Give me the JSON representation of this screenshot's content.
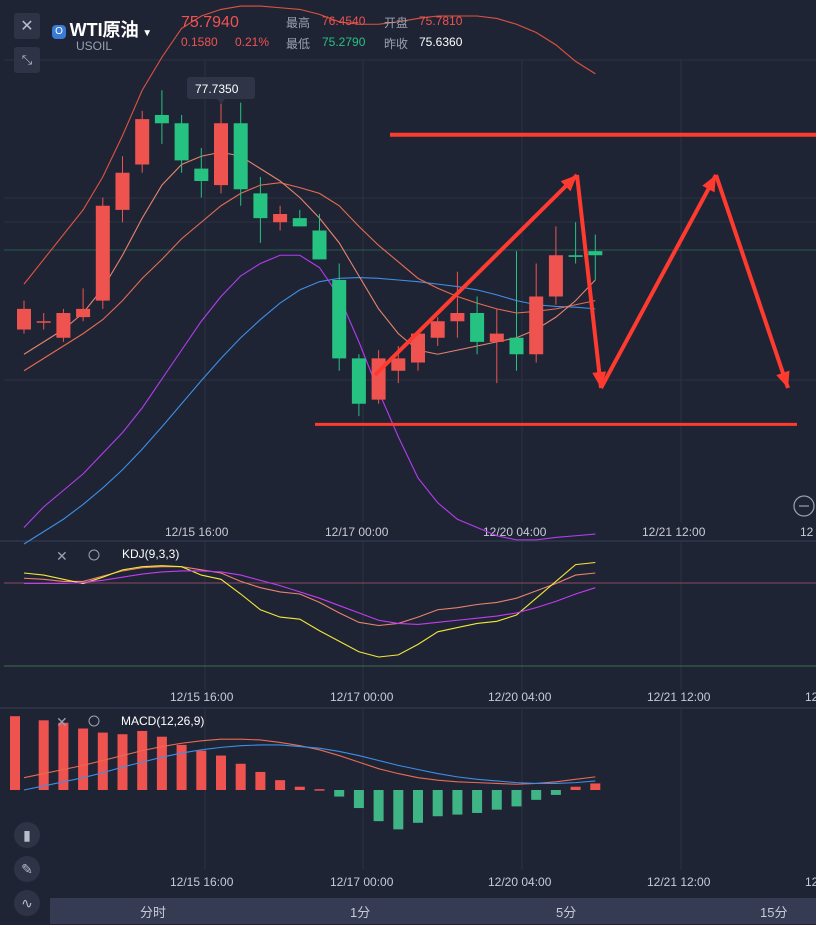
{
  "header": {
    "symbol": "WTI原油",
    "code": "USOIL",
    "price": "75.7940",
    "change": "0.1580",
    "change_pct": "0.21%",
    "high_label": "最高",
    "high": "76.4540",
    "open_label": "开盘",
    "open": "75.7810",
    "low_label": "最低",
    "low": "75.2790",
    "prev_label": "昨收",
    "prev_close": "75.6360",
    "colors": {
      "up": "#ef5350",
      "down": "#26c281"
    }
  },
  "tabs": [
    {
      "label": "分时"
    },
    {
      "label": "1分"
    },
    {
      "label": "5分"
    },
    {
      "label": "15分"
    }
  ],
  "chart_data": [
    {
      "type": "candlestick",
      "name": "price",
      "time_labels": [
        "12/15 16:00",
        "12/17 00:00",
        "12/20 04:00",
        "12/21 12:00",
        "12"
      ],
      "annotation": "77.7350",
      "candles": [
        {
          "o": 74.7,
          "h": 75.05,
          "l": 74.65,
          "c": 74.95
        },
        {
          "o": 74.8,
          "h": 74.9,
          "l": 74.7,
          "c": 74.8
        },
        {
          "o": 74.6,
          "h": 74.95,
          "l": 74.55,
          "c": 74.9
        },
        {
          "o": 74.85,
          "h": 75.2,
          "l": 74.8,
          "c": 74.95
        },
        {
          "o": 75.05,
          "h": 76.3,
          "l": 74.95,
          "c": 76.2
        },
        {
          "o": 76.15,
          "h": 76.8,
          "l": 76.0,
          "c": 76.6
        },
        {
          "o": 76.7,
          "h": 77.35,
          "l": 76.6,
          "c": 77.25
        },
        {
          "o": 77.3,
          "h": 77.6,
          "l": 76.95,
          "c": 77.2
        },
        {
          "o": 77.2,
          "h": 77.3,
          "l": 76.6,
          "c": 76.75
        },
        {
          "o": 76.65,
          "h": 76.9,
          "l": 76.3,
          "c": 76.5
        },
        {
          "o": 76.45,
          "h": 77.74,
          "l": 76.35,
          "c": 77.2
        },
        {
          "o": 77.2,
          "h": 77.45,
          "l": 76.2,
          "c": 76.4
        },
        {
          "o": 76.35,
          "h": 76.55,
          "l": 75.75,
          "c": 76.05
        },
        {
          "o": 76.0,
          "h": 76.2,
          "l": 75.9,
          "c": 76.1
        },
        {
          "o": 76.05,
          "h": 76.15,
          "l": 75.95,
          "c": 75.95
        },
        {
          "o": 75.9,
          "h": 76.1,
          "l": 75.55,
          "c": 75.55
        },
        {
          "o": 75.3,
          "h": 75.5,
          "l": 74.2,
          "c": 74.35
        },
        {
          "o": 74.35,
          "h": 74.4,
          "l": 73.65,
          "c": 73.8
        },
        {
          "o": 73.85,
          "h": 74.45,
          "l": 73.8,
          "c": 74.35
        },
        {
          "o": 74.2,
          "h": 74.5,
          "l": 74.05,
          "c": 74.35
        },
        {
          "o": 74.3,
          "h": 74.65,
          "l": 74.2,
          "c": 74.65
        },
        {
          "o": 74.6,
          "h": 74.85,
          "l": 74.5,
          "c": 74.8
        },
        {
          "o": 74.8,
          "h": 75.4,
          "l": 74.6,
          "c": 74.9
        },
        {
          "o": 74.9,
          "h": 75.1,
          "l": 74.4,
          "c": 74.55
        },
        {
          "o": 74.55,
          "h": 74.95,
          "l": 74.05,
          "c": 74.65
        },
        {
          "o": 74.6,
          "h": 75.65,
          "l": 74.2,
          "c": 74.4
        },
        {
          "o": 74.4,
          "h": 75.5,
          "l": 74.3,
          "c": 75.1
        },
        {
          "o": 75.1,
          "h": 75.95,
          "l": 75.0,
          "c": 75.6
        },
        {
          "o": 75.6,
          "h": 76.0,
          "l": 75.5,
          "c": 75.58
        },
        {
          "o": 75.65,
          "h": 75.85,
          "l": 75.3,
          "c": 75.6
        }
      ],
      "boll_upper": [
        75.25,
        75.55,
        75.85,
        76.15,
        76.55,
        77.05,
        77.6,
        78.0,
        78.35,
        78.5,
        78.58,
        78.62,
        78.62,
        78.6,
        78.58,
        78.52,
        78.43,
        78.4,
        78.4,
        78.43,
        78.47,
        78.5,
        78.5,
        78.5,
        78.47,
        78.4,
        78.3,
        78.15,
        77.95,
        77.8
      ],
      "boll_mid": [
        74.2,
        74.35,
        74.5,
        74.65,
        74.82,
        75.05,
        75.32,
        75.55,
        75.8,
        76.0,
        76.2,
        76.35,
        76.45,
        76.48,
        76.42,
        76.35,
        76.2,
        75.95,
        75.72,
        75.52,
        75.32,
        75.2,
        75.1,
        75.02,
        74.95,
        74.9,
        74.92,
        74.95,
        75.0,
        75.05
      ],
      "boll_lower": [
        72.3,
        72.55,
        72.75,
        72.95,
        73.2,
        73.45,
        73.75,
        74.1,
        74.45,
        74.8,
        75.1,
        75.35,
        75.5,
        75.6,
        75.6,
        75.45,
        75.1,
        74.55,
        73.95,
        73.4,
        72.9,
        72.6,
        72.4,
        72.3,
        72.2,
        72.15,
        72.15,
        72.18,
        72.2,
        72.22
      ],
      "ma_blue": [
        72.1,
        72.25,
        72.4,
        72.58,
        72.78,
        73.0,
        73.25,
        73.52,
        73.8,
        74.08,
        74.35,
        74.6,
        74.82,
        75.02,
        75.18,
        75.28,
        75.32,
        75.33,
        75.32,
        75.3,
        75.28,
        75.25,
        75.22,
        75.18,
        75.12,
        75.05,
        75.0,
        74.98,
        74.97,
        74.95
      ],
      "ma_pink": [
        74.4,
        74.55,
        74.7,
        74.9,
        75.2,
        75.6,
        76.05,
        76.45,
        76.7,
        76.8,
        76.85,
        76.8,
        76.65,
        76.5,
        76.3,
        76.05,
        75.75,
        75.35,
        74.95,
        74.65,
        74.45,
        74.4,
        74.45,
        74.5,
        74.55,
        74.6,
        74.7,
        74.85,
        75.05,
        75.3
      ],
      "trend_lines": [
        {
          "kind": "horizontal",
          "y": 77.06
        },
        {
          "kind": "horizontal",
          "y": 73.55
        }
      ]
    },
    {
      "type": "line",
      "name": "KDJ",
      "label": "KDJ(9,3,3)",
      "series": [
        {
          "values": [
            75,
            74,
            72,
            72,
            77,
            82,
            85,
            86,
            86,
            83,
            80,
            72,
            66,
            62,
            60,
            52,
            42,
            33,
            30,
            32,
            38,
            45,
            47,
            50,
            52,
            56,
            63,
            70,
            78,
            80
          ]
        },
        {
          "values": [
            80,
            78,
            74,
            70,
            76,
            83,
            86,
            87,
            86,
            78,
            74,
            60,
            45,
            38,
            36,
            25,
            15,
            5,
            0,
            2,
            12,
            24,
            28,
            32,
            34,
            40,
            56,
            72,
            88,
            90
          ]
        },
        {
          "values": [
            70,
            70,
            70,
            71,
            73,
            76,
            79,
            81,
            82,
            82,
            81,
            78,
            73,
            68,
            62,
            56,
            49,
            42,
            35,
            32,
            31,
            33,
            35,
            37,
            39,
            42,
            47,
            53,
            60,
            66
          ]
        }
      ],
      "levels": [
        80,
        20
      ]
    },
    {
      "type": "bar",
      "name": "MACD",
      "label": "MACD(12,26,9)",
      "histogram": [
        0.9,
        0.85,
        0.82,
        0.75,
        0.7,
        0.68,
        0.72,
        0.65,
        0.55,
        0.48,
        0.42,
        0.32,
        0.22,
        0.12,
        0.04,
        0.01,
        -0.08,
        -0.22,
        -0.38,
        -0.48,
        -0.4,
        -0.32,
        -0.3,
        -0.28,
        -0.24,
        -0.2,
        -0.12,
        -0.06,
        0.04,
        0.08
      ],
      "dif": [
        0.15,
        0.2,
        0.25,
        0.3,
        0.36,
        0.42,
        0.48,
        0.53,
        0.57,
        0.6,
        0.62,
        0.62,
        0.61,
        0.58,
        0.54,
        0.49,
        0.42,
        0.34,
        0.26,
        0.2,
        0.15,
        0.12,
        0.1,
        0.09,
        0.08,
        0.07,
        0.08,
        0.1,
        0.13,
        0.16
      ],
      "dea": [
        0.0,
        0.05,
        0.1,
        0.15,
        0.21,
        0.28,
        0.34,
        0.4,
        0.45,
        0.49,
        0.52,
        0.54,
        0.55,
        0.55,
        0.53,
        0.51,
        0.47,
        0.42,
        0.36,
        0.3,
        0.25,
        0.2,
        0.16,
        0.13,
        0.11,
        0.09,
        0.08,
        0.08,
        0.09,
        0.11
      ]
    }
  ]
}
